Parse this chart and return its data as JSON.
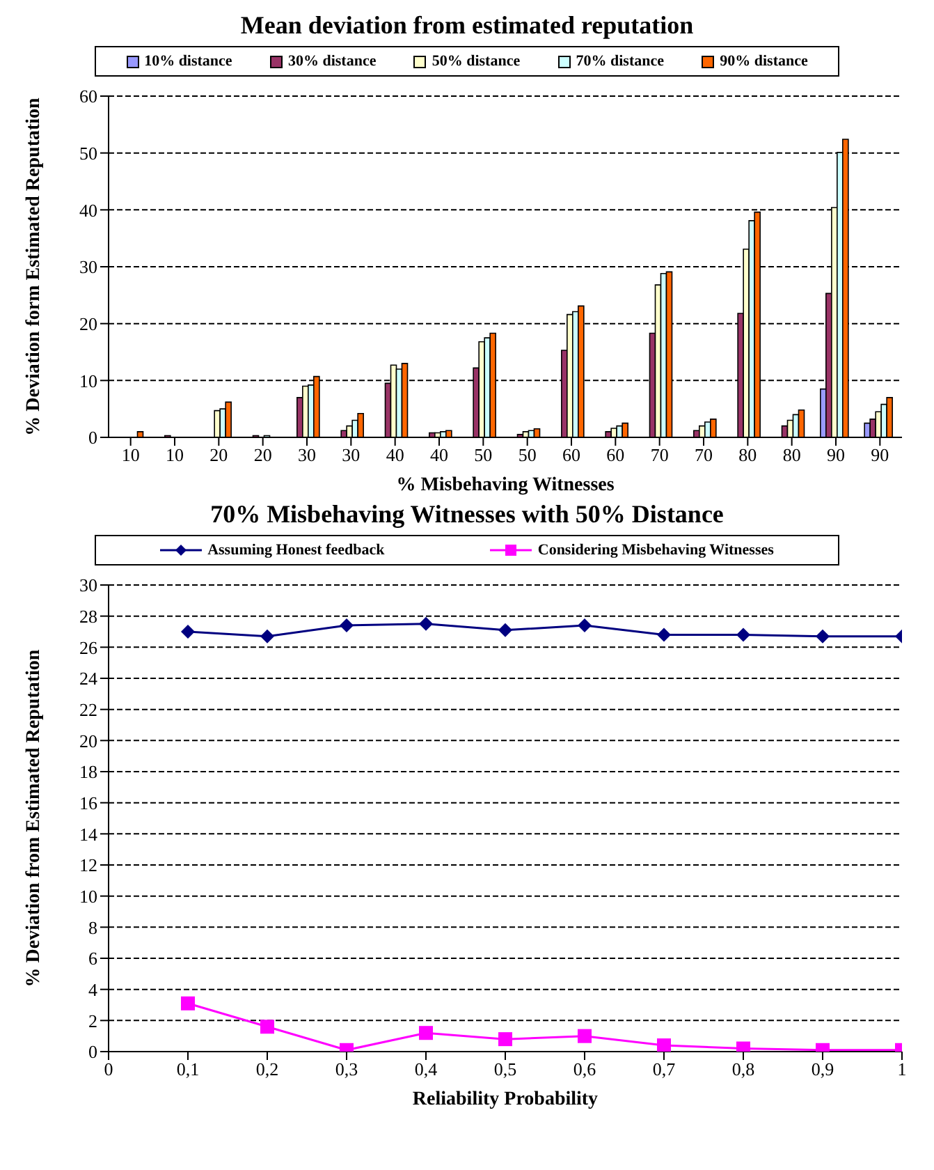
{
  "chart_data": [
    {
      "type": "bar",
      "title": "Mean deviation from estimated reputation",
      "xlabel": "% Misbehaving Witnesses",
      "ylabel": "% Deviation form Estimated Reputation",
      "categories": [
        "10",
        "10",
        "20",
        "20",
        "30",
        "30",
        "40",
        "40",
        "50",
        "50",
        "60",
        "60",
        "70",
        "70",
        "80",
        "80",
        "90",
        "90"
      ],
      "series": [
        {
          "name": "10% distance",
          "color": "#9999ff",
          "values": [
            0,
            0,
            0,
            0,
            0,
            0,
            0,
            0,
            0,
            0,
            0,
            0,
            0,
            0,
            0,
            0,
            8.5,
            2.5
          ]
        },
        {
          "name": "30% distance",
          "color": "#993366",
          "values": [
            0,
            0.3,
            0,
            0.3,
            7.0,
            1.2,
            9.5,
            0.8,
            12.2,
            0.5,
            15.3,
            1.0,
            18.3,
            1.2,
            21.8,
            2.0,
            25.3,
            3.2
          ]
        },
        {
          "name": "50% distance",
          "color": "#ffffcc",
          "values": [
            0,
            0,
            4.7,
            null,
            9.0,
            2.0,
            12.7,
            0.8,
            16.8,
            1.0,
            21.6,
            1.6,
            26.8,
            2.0,
            33.1,
            3.0,
            40.4,
            4.5
          ]
        },
        {
          "name": "70% distance",
          "color": "#ccffff",
          "values": [
            0,
            0,
            5.0,
            0.3,
            9.2,
            3.0,
            12.0,
            1.0,
            17.5,
            1.2,
            22.1,
            2.0,
            28.8,
            2.7,
            38.1,
            4.0,
            50.1,
            5.8
          ]
        },
        {
          "name": "90% distance",
          "color": "#ff6600",
          "values": [
            1.0,
            0,
            6.2,
            0,
            10.7,
            4.2,
            13.0,
            1.2,
            18.3,
            1.5,
            23.1,
            2.5,
            29.1,
            3.2,
            39.6,
            4.8,
            52.4,
            7.0
          ]
        }
      ],
      "ylim": [
        0,
        60
      ],
      "yticks": [
        0,
        10,
        20,
        30,
        40,
        50,
        60
      ],
      "grid": "y",
      "legend": "top"
    },
    {
      "type": "line",
      "title": "70%  Misbehaving Witnesses with 50% Distance",
      "xlabel": "Reliability Probability",
      "ylabel": "% Deviation from Estimated Reputation",
      "x": [
        0.1,
        0.2,
        0.3,
        0.4,
        0.5,
        0.6,
        0.7,
        0.8,
        0.9,
        1
      ],
      "series": [
        {
          "name": "Assuming Honest feedback",
          "color": "#000080",
          "marker": "diamond",
          "values": [
            27.0,
            26.7,
            27.4,
            27.5,
            27.1,
            27.4,
            26.8,
            26.8,
            26.7,
            26.7
          ]
        },
        {
          "name": "Considering Misbehaving Witnesses",
          "color": "#ff00ff",
          "marker": "square",
          "values": [
            3.1,
            1.6,
            0.1,
            1.2,
            0.8,
            1.0,
            0.4,
            0.2,
            0.1,
            0.1
          ]
        }
      ],
      "xlim": [
        0,
        1
      ],
      "xticks": [
        0,
        {
          "value": 0.1,
          "label": "0,1"
        },
        {
          "value": 0.2,
          "label": "0,2"
        },
        {
          "value": 0.3,
          "label": "0,3"
        },
        {
          "value": 0.4,
          "label": "0,4"
        },
        {
          "value": 0.5,
          "label": "0,5"
        },
        {
          "value": 0.6,
          "label": "0,6"
        },
        {
          "value": 0.7,
          "label": "0,7"
        },
        {
          "value": 0.8,
          "label": "0,8"
        },
        {
          "value": 0.9,
          "label": "0,9"
        },
        1
      ],
      "ylim": [
        0,
        30
      ],
      "yticks": [
        0,
        2,
        4,
        6,
        8,
        10,
        12,
        14,
        16,
        18,
        20,
        22,
        24,
        26,
        28,
        30
      ],
      "grid": "y",
      "legend": "top",
      "line_style": "solid"
    }
  ]
}
